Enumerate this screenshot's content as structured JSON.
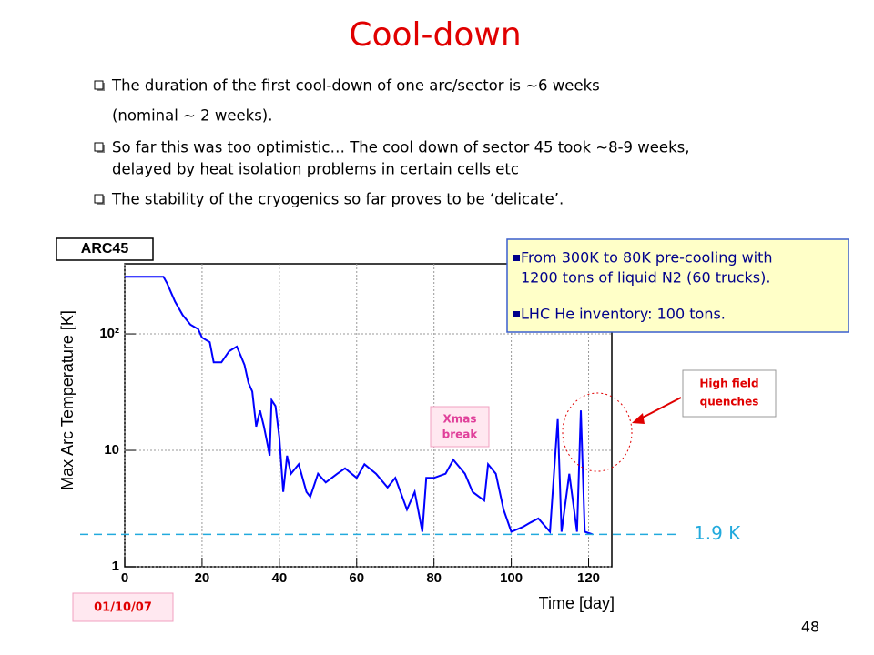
{
  "slide": {
    "title": "Cool-down",
    "bullets": [
      [
        "The duration of the first cool-down of one arc/sector is ~6 weeks",
        "(nominal ~ 2 weeks)."
      ],
      [
        "So far this was too optimistic… The cool down of sector 45 took ~8-9 weeks,",
        "delayed by heat isolation problems in certain cells etc"
      ],
      [
        "The stability of the cryogenics so far proves to be ‘delicate’."
      ]
    ],
    "info_box": [
      [
        "From 300K to 80K pre-cooling with",
        "1200 tons of liquid N2 (60 trucks)."
      ],
      [
        "LHC He inventory: 100 tons."
      ]
    ],
    "date": "01/10/07",
    "page_number": "48"
  },
  "chart_data": {
    "type": "line",
    "title": "ARC45",
    "x_label": "Time [day]",
    "y_label": "Max Arc Temperature [K]",
    "yscale": "log",
    "grid": true,
    "color": "#0000ff",
    "xlim": [
      0,
      126
    ],
    "xticks": [
      0,
      20,
      40,
      60,
      80,
      100,
      120
    ],
    "ylim": [
      1,
      400
    ],
    "yticks": [
      1,
      10,
      {
        "value": 100,
        "label": "10²"
      }
    ],
    "x": [
      0,
      10,
      11,
      13,
      15,
      17,
      19,
      20,
      22,
      23,
      25,
      27,
      29,
      30,
      31,
      32,
      33,
      34,
      35,
      36,
      37,
      37.5,
      38,
      39,
      40,
      41,
      42,
      43,
      45,
      47,
      48,
      50,
      52,
      55,
      57,
      60,
      62,
      65,
      68,
      70,
      73,
      75,
      77,
      78,
      80,
      83,
      85,
      88,
      90,
      93,
      94,
      96,
      98,
      100,
      103,
      105,
      107,
      110,
      112,
      113,
      115,
      117,
      118,
      119,
      121
    ],
    "values": [
      310,
      310,
      270,
      190,
      145,
      120,
      110,
      93,
      85,
      57,
      57,
      71,
      78,
      65,
      54,
      38,
      32,
      16,
      22,
      16,
      11,
      9,
      27,
      24,
      13,
      4.4,
      9,
      6.3,
      7.6,
      4.4,
      4,
      6.3,
      5.3,
      6.3,
      7,
      5.8,
      7.6,
      6.3,
      4.8,
      5.8,
      3.1,
      4.4,
      2,
      5.8,
      5.8,
      6.3,
      8.3,
      6.3,
      4.4,
      3.7,
      7.6,
      6.3,
      3.1,
      2,
      2.2,
      2.4,
      2.6,
      2,
      18.5,
      2,
      6.3,
      2,
      22,
      2,
      1.9
    ],
    "reference_line": {
      "value": 1.9,
      "label": "1.9 K"
    },
    "annotations": [
      [
        "Xmas",
        "break"
      ],
      [
        "High field",
        "quenches"
      ]
    ]
  }
}
